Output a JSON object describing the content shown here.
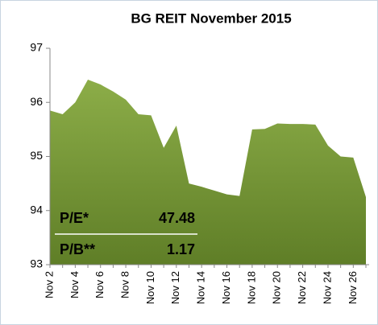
{
  "chart_data": {
    "type": "area",
    "title": "BG REIT November 2015",
    "categories": [
      "Nov 2",
      null,
      "Nov 4",
      null,
      "Nov 6",
      null,
      "Nov 8",
      null,
      "Nov 10",
      null,
      "Nov 12",
      null,
      "Nov 14",
      null,
      "Nov 16",
      null,
      "Nov 18",
      null,
      "Nov 20",
      null,
      "Nov 22",
      null,
      "Nov 24",
      null,
      "Nov 26",
      null
    ],
    "values": [
      95.85,
      95.78,
      96.0,
      96.42,
      96.33,
      96.2,
      96.05,
      95.78,
      95.76,
      95.16,
      95.57,
      94.5,
      94.44,
      94.37,
      94.3,
      94.27,
      95.5,
      95.51,
      95.61,
      95.6,
      95.6,
      95.59,
      95.2,
      95.0,
      94.98,
      94.25
    ],
    "color": "#6f8f30",
    "ylim": [
      93,
      97
    ],
    "yticks": [
      93,
      94,
      95,
      96,
      97
    ],
    "annotations": [
      {
        "label": "P/E*",
        "value": "47.48"
      },
      {
        "label": "P/B**",
        "value": "1.17"
      }
    ]
  }
}
